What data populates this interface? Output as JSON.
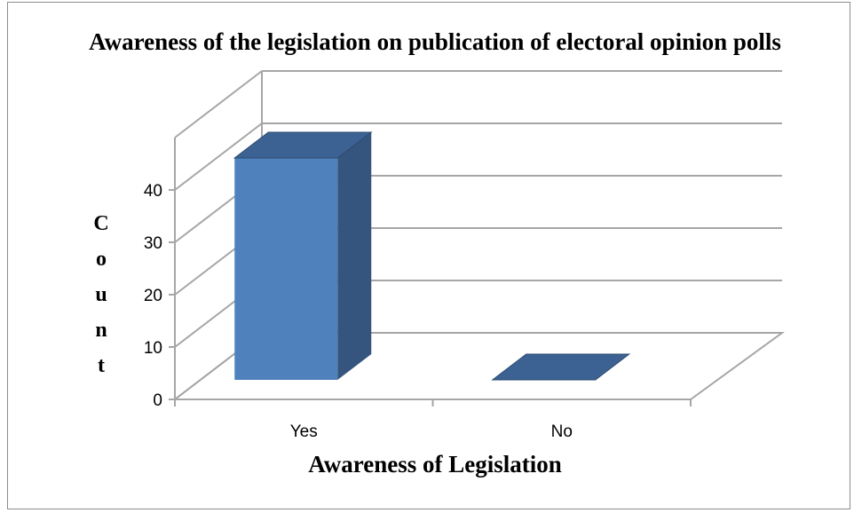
{
  "chart_data": {
    "type": "bar",
    "title": "Awareness of the legislation on publication of electoral opinion polls",
    "xlabel": "Awareness of Legislation",
    "ylabel": "Count",
    "categories": [
      "Yes",
      "No"
    ],
    "values": [
      40,
      0
    ],
    "ylim": [
      0,
      40
    ],
    "yticks": [
      0,
      10,
      20,
      30,
      40
    ],
    "grid": true,
    "legend": "none",
    "three_d": true,
    "colors": {
      "bar_front": "#4f81bd",
      "bar_side": "#35557f",
      "bar_top": "#3c6293",
      "grid": "#a6a6a6"
    }
  }
}
